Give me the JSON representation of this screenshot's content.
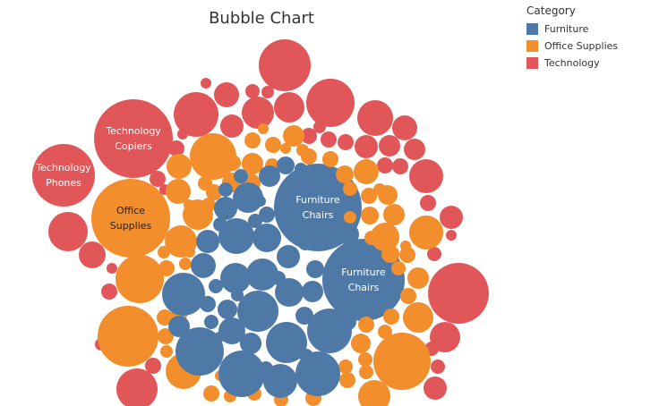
{
  "chart_data": {
    "type": "bubble",
    "title": "Bubble Chart",
    "legend": {
      "title": "Category",
      "placement": "top-right",
      "items": [
        {
          "label": "Furniture",
          "color": "#4e79a7"
        },
        {
          "label": "Office Supplies",
          "color": "#f28e2b"
        },
        {
          "label": "Technology",
          "color": "#e15759"
        }
      ]
    },
    "labeled_bubbles": [
      {
        "category": "Technology",
        "sub_category": "Copiers",
        "line1": "Technology",
        "line2": "Copiers"
      },
      {
        "category": "Technology",
        "sub_category": "Phones",
        "line1": "Technology",
        "line2": "Phones"
      },
      {
        "category": "Office Supplies",
        "sub_category": "Supplies",
        "line1": "Office",
        "line2": "Supplies"
      },
      {
        "category": "Furniture",
        "sub_category": "Chairs",
        "line1": "Furniture",
        "line2": "Chairs"
      },
      {
        "category": "Furniture",
        "sub_category": "Chairs",
        "line1": "Furniture",
        "line2": "Chairs"
      }
    ]
  }
}
